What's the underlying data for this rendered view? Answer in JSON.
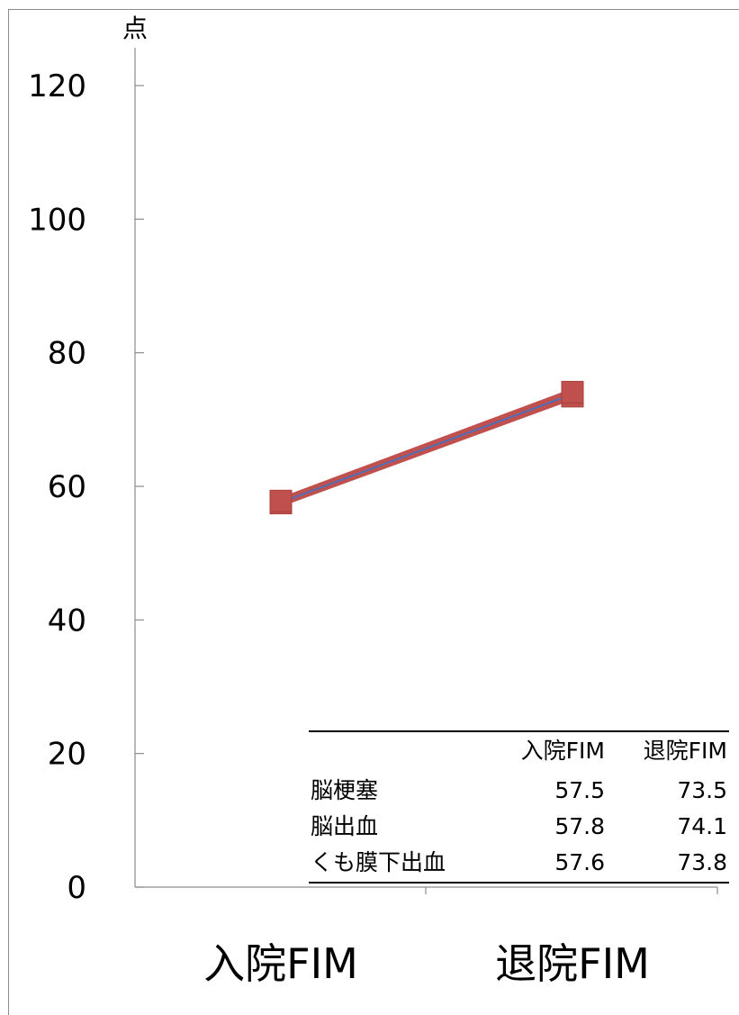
{
  "chart_data": {
    "type": "line",
    "categories": [
      "入院FIM",
      "退院FIM"
    ],
    "series": [
      {
        "values": [
          57.5,
          73.5
        ],
        "color": "#c0504d"
      },
      {
        "values": [
          57.8,
          74.1
        ],
        "color": "#c0504d"
      },
      {
        "values": [
          57.6,
          73.8
        ],
        "color": "#4f6fb8"
      }
    ],
    "y_unit": "点",
    "ylim": [
      0,
      120
    ],
    "yticks": [
      0,
      20,
      40,
      60,
      80,
      100,
      120
    ],
    "ytick_labels": [
      "0",
      "20",
      "40",
      "60",
      "80",
      "100",
      "120"
    ],
    "legend": "none",
    "grid": false,
    "table": {
      "columns": [
        "",
        "入院FIM",
        "退院FIM"
      ],
      "rows": [
        {
          "label": "脳梗塞",
          "admission": "57.5",
          "discharge": "73.5"
        },
        {
          "label": "脳出血",
          "admission": "57.8",
          "discharge": "74.1"
        },
        {
          "label": "くも膜下出血",
          "admission": "57.6",
          "discharge": "73.8"
        }
      ]
    }
  }
}
